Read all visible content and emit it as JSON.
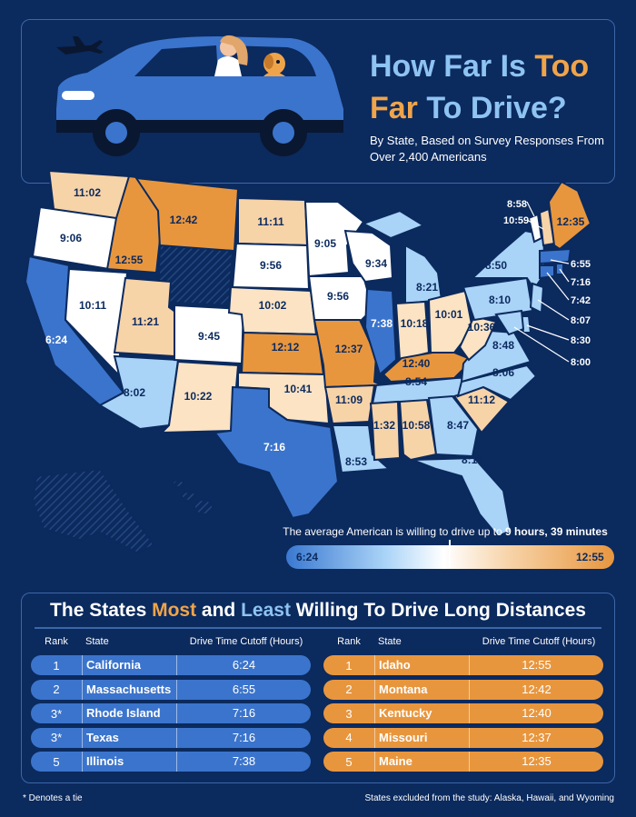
{
  "header": {
    "title_part1": "How Far Is ",
    "title_hl1": "Too",
    "title_hl2": "Far",
    "title_part2": " To Drive?",
    "subtitle": "By State, Based on Survey Responses From Over 2,400 Americans"
  },
  "colors": {
    "background": "#0b2a5e",
    "least_blue": "#3b74cc",
    "most_orange": "#e8963e",
    "title_blue": "#8ec3f2"
  },
  "icons": [
    "airplane-icon",
    "car-illustration",
    "dog-icon"
  ],
  "map": {
    "states": [
      {
        "name": "WA",
        "value": "11:02"
      },
      {
        "name": "OR",
        "value": "9:06"
      },
      {
        "name": "CA",
        "value": "6:24"
      },
      {
        "name": "ID",
        "value": "12:55"
      },
      {
        "name": "NV",
        "value": "10:11"
      },
      {
        "name": "MT",
        "value": "12:42"
      },
      {
        "name": "UT",
        "value": "11:21"
      },
      {
        "name": "AZ",
        "value": "8:02"
      },
      {
        "name": "CO",
        "value": "9:45"
      },
      {
        "name": "NM",
        "value": "10:22"
      },
      {
        "name": "ND",
        "value": "11:11"
      },
      {
        "name": "SD",
        "value": "9:56"
      },
      {
        "name": "NE",
        "value": "10:02"
      },
      {
        "name": "KS",
        "value": "12:12"
      },
      {
        "name": "OK",
        "value": "10:41"
      },
      {
        "name": "TX",
        "value": "7:16"
      },
      {
        "name": "MN",
        "value": "9:05"
      },
      {
        "name": "IA",
        "value": "9:56"
      },
      {
        "name": "MO",
        "value": "12:37"
      },
      {
        "name": "AR",
        "value": "11:09"
      },
      {
        "name": "LA",
        "value": "8:53"
      },
      {
        "name": "WI",
        "value": "9:34"
      },
      {
        "name": "IL",
        "value": "7:38"
      },
      {
        "name": "MI",
        "value": "8:21"
      },
      {
        "name": "IN",
        "value": "10:18"
      },
      {
        "name": "OH",
        "value": "10:01"
      },
      {
        "name": "KY",
        "value": "12:40"
      },
      {
        "name": "TN",
        "value": "8:54"
      },
      {
        "name": "MS",
        "value": "11:32"
      },
      {
        "name": "AL",
        "value": "10:58"
      },
      {
        "name": "GA",
        "value": "8:47"
      },
      {
        "name": "FL",
        "value": "8:19"
      },
      {
        "name": "SC",
        "value": "11:12"
      },
      {
        "name": "NC",
        "value": "8:06"
      },
      {
        "name": "VA",
        "value": "8:48"
      },
      {
        "name": "WV",
        "value": "10:36"
      },
      {
        "name": "PA",
        "value": "8:10"
      },
      {
        "name": "NY",
        "value": "8:50"
      },
      {
        "name": "ME",
        "value": "12:35"
      }
    ],
    "callouts": [
      {
        "name": "VT",
        "value": "8:58"
      },
      {
        "name": "NH",
        "value": "10:59"
      },
      {
        "name": "MA",
        "value": "6:55"
      },
      {
        "name": "RI",
        "value": "7:16"
      },
      {
        "name": "CT",
        "value": "7:42"
      },
      {
        "name": "NJ",
        "value": "8:07"
      },
      {
        "name": "DE",
        "value": "8:30"
      },
      {
        "name": "MD",
        "value": "8:00"
      }
    ]
  },
  "legend": {
    "average_text": "The average American is willing to drive up to ",
    "average_value": "9 hours, 39 minutes",
    "min": "6:24",
    "max": "12:55"
  },
  "table": {
    "title_part1": "The States ",
    "title_most": "Most",
    "title_part2": " and ",
    "title_least": "Least",
    "title_part3": " Willing To Drive Long Distances",
    "columns": {
      "rank": "Rank",
      "state": "State",
      "time": "Drive Time Cutoff (Hours)"
    },
    "least": [
      {
        "rank": "1",
        "state": "California",
        "time": "6:24"
      },
      {
        "rank": "2",
        "state": "Massachusetts",
        "time": "6:55"
      },
      {
        "rank": "3*",
        "state": "Rhode Island",
        "time": "7:16"
      },
      {
        "rank": "3*",
        "state": "Texas",
        "time": "7:16"
      },
      {
        "rank": "5",
        "state": "Illinois",
        "time": "7:38"
      }
    ],
    "most": [
      {
        "rank": "1",
        "state": "Idaho",
        "time": "12:55"
      },
      {
        "rank": "2",
        "state": "Montana",
        "time": "12:42"
      },
      {
        "rank": "3",
        "state": "Kentucky",
        "time": "12:40"
      },
      {
        "rank": "4",
        "state": "Missouri",
        "time": "12:37"
      },
      {
        "rank": "5",
        "state": "Maine",
        "time": "12:35"
      }
    ]
  },
  "footnote": "* Denotes a tie",
  "excluded": "States excluded from the study: Alaska, Hawaii, and Wyoming"
}
